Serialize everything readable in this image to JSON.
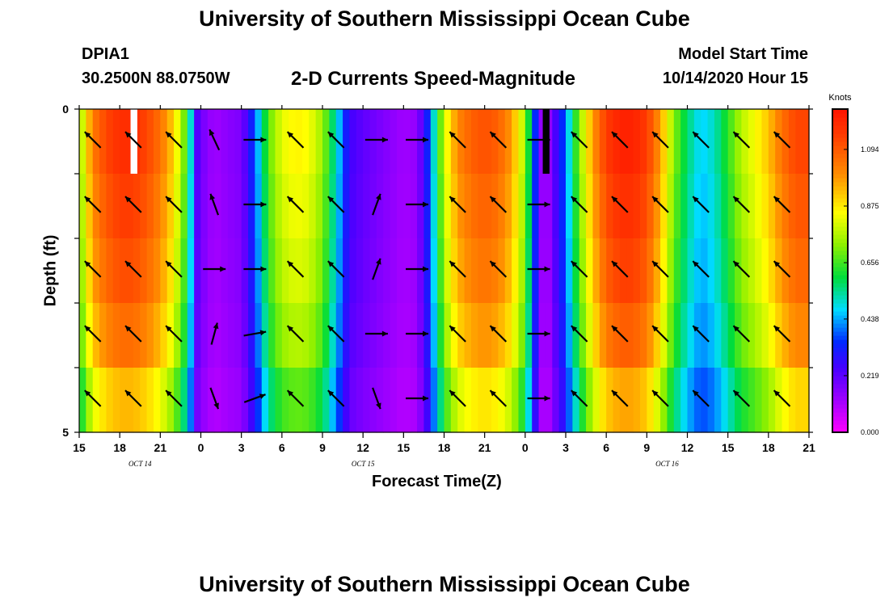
{
  "header": {
    "title": "University of Southern Mississippi Ocean Cube",
    "station": "DPIA1",
    "coords": "30.2500N 88.0750W",
    "subtitle": "2-D Currents Speed-Magnitude",
    "model_start_label": "Model Start Time",
    "model_start_value": "10/14/2020 Hour 15"
  },
  "footer": {
    "title": "University of Southern Mississippi Ocean Cube"
  },
  "chart_data": {
    "type": "heatmap",
    "title": "2-D Currents Speed-Magnitude",
    "xlabel": "Forecast Time(Z)",
    "ylabel": "Depth (ft)",
    "x_tick_labels": [
      "15",
      "18",
      "21",
      "0",
      "3",
      "6",
      "9",
      "12",
      "15",
      "18",
      "21",
      "0",
      "3",
      "6",
      "9",
      "12",
      "15",
      "18",
      "21"
    ],
    "date_labels": [
      {
        "text": "OCT 14",
        "hour_index": 4.5
      },
      {
        "text": "OCT 15",
        "hour_index": 21
      },
      {
        "text": "OCT 16",
        "hour_index": 43.5
      }
    ],
    "y_tick_labels": [
      "0",
      "5"
    ],
    "xlim_hours": [
      0,
      54
    ],
    "ylim": [
      0,
      5
    ],
    "depth_layers": 5,
    "colorbar": {
      "unit": "Knots",
      "ticks": [
        "0.000",
        "0.219",
        "0.438",
        "0.656",
        "0.875",
        "1.094"
      ],
      "min": 0,
      "max": 1.25
    },
    "speed_profile": [
      [
        0,
        0.7
      ],
      [
        1,
        1.0
      ],
      [
        2,
        1.1
      ],
      [
        3,
        1.15
      ],
      [
        4,
        1.15
      ],
      [
        5,
        1.1
      ],
      [
        6,
        1.02
      ],
      [
        7,
        0.88
      ],
      [
        8,
        0.62
      ],
      [
        8.8,
        0.2
      ],
      [
        10,
        0.12
      ],
      [
        11,
        0.15
      ],
      [
        12,
        0.17
      ],
      [
        12.6,
        0.28
      ],
      [
        13.3,
        0.45
      ],
      [
        14,
        0.66
      ],
      [
        15,
        0.8
      ],
      [
        16,
        0.84
      ],
      [
        17,
        0.82
      ],
      [
        18,
        0.72
      ],
      [
        19,
        0.5
      ],
      [
        20,
        0.25
      ],
      [
        21,
        0.21
      ],
      [
        22,
        0.18
      ],
      [
        24,
        0.12
      ],
      [
        25,
        0.14
      ],
      [
        25.7,
        0.3
      ],
      [
        26.5,
        0.58
      ],
      [
        27,
        0.78
      ],
      [
        28,
        0.98
      ],
      [
        29,
        1.05
      ],
      [
        30,
        1.08
      ],
      [
        31,
        1.05
      ],
      [
        32,
        0.95
      ],
      [
        33,
        0.72
      ],
      [
        33.6,
        0.42
      ],
      [
        34,
        0.2
      ],
      [
        34.5,
        0.08
      ],
      [
        35,
        0.2
      ],
      [
        35.5,
        0.28
      ],
      [
        36,
        0.4
      ],
      [
        37,
        0.7
      ],
      [
        38,
        0.95
      ],
      [
        39,
        1.12
      ],
      [
        40,
        1.18
      ],
      [
        41,
        1.18
      ],
      [
        42,
        1.12
      ],
      [
        43,
        0.95
      ],
      [
        44,
        0.7
      ],
      [
        45,
        0.55
      ],
      [
        46,
        0.45
      ],
      [
        47,
        0.5
      ],
      [
        48,
        0.62
      ],
      [
        49,
        0.75
      ],
      [
        50,
        0.82
      ],
      [
        51,
        0.9
      ],
      [
        52,
        1.02
      ],
      [
        53,
        1.1
      ],
      [
        54,
        1.1
      ]
    ],
    "layer_factors": [
      1.03,
      1.0,
      0.97,
      0.92,
      0.82
    ],
    "arrow_hours": [
      1,
      4,
      7,
      10,
      13,
      16,
      19,
      22,
      25,
      28,
      31,
      34,
      37,
      40,
      43,
      46,
      49,
      52
    ],
    "arrow_directions_deg": [
      [
        315,
        315,
        315,
        335,
        90,
        315,
        315,
        90,
        90,
        315,
        315,
        90,
        315,
        315,
        315,
        315,
        315,
        315
      ],
      [
        315,
        315,
        315,
        340,
        90,
        315,
        315,
        20,
        90,
        315,
        315,
        90,
        315,
        315,
        315,
        315,
        315,
        315
      ],
      [
        315,
        315,
        315,
        90,
        90,
        315,
        315,
        20,
        90,
        315,
        315,
        90,
        315,
        315,
        315,
        315,
        315,
        315
      ],
      [
        315,
        315,
        315,
        15,
        80,
        315,
        315,
        90,
        90,
        315,
        315,
        90,
        315,
        315,
        315,
        315,
        315,
        315
      ],
      [
        315,
        315,
        315,
        160,
        70,
        315,
        315,
        160,
        90,
        315,
        315,
        90,
        315,
        315,
        315,
        315,
        315,
        315
      ]
    ],
    "missing_cells": [
      {
        "hour_range": [
          3.8,
          4.3
        ],
        "layer": 0,
        "color": "#ffffff"
      },
      {
        "hour_range": [
          34.3,
          34.8
        ],
        "layer": 0,
        "color": "#000000"
      }
    ]
  }
}
